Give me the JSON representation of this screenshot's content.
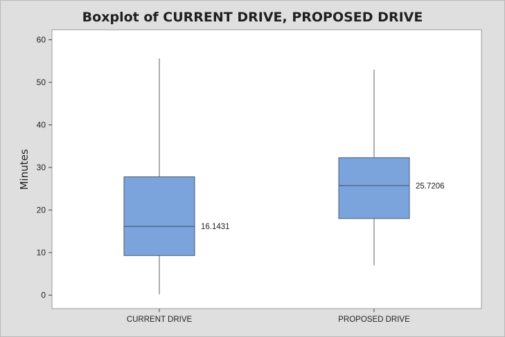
{
  "chart_data": {
    "type": "boxplot",
    "title": "Boxplot of CURRENT DRIVE, PROPOSED DRIVE",
    "xlabel": "",
    "ylabel": "Minutes",
    "ylim": [
      0,
      60
    ],
    "yticks": [
      0,
      10,
      20,
      30,
      40,
      50,
      60
    ],
    "grid": false,
    "box_color": "#7ba3dc",
    "edge_color": "#4a5a75",
    "series": [
      {
        "name": "CURRENT DRIVE",
        "min": 0.2,
        "q1": 9.3,
        "median": 16.1431,
        "q3": 27.8,
        "max": 55.6,
        "median_label": "16.1431"
      },
      {
        "name": "PROPOSED DRIVE",
        "min": 7.0,
        "q1": 18.0,
        "median": 25.7206,
        "q3": 32.3,
        "max": 53.0,
        "median_label": "25.7206"
      }
    ]
  }
}
